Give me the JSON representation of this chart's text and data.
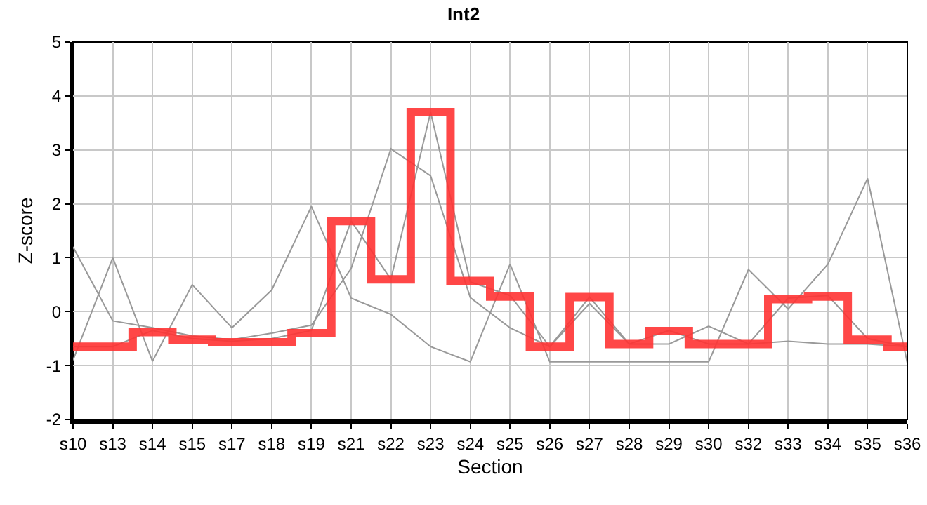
{
  "chart_data": {
    "type": "line",
    "title": "Int2",
    "xlabel": "Section",
    "ylabel": "Z-score",
    "categories": [
      "s10",
      "s13",
      "s14",
      "s15",
      "s17",
      "s18",
      "s19",
      "s21",
      "s22",
      "s23",
      "s24",
      "s25",
      "s26",
      "s27",
      "s28",
      "s29",
      "s30",
      "s32",
      "s33",
      "s34",
      "s35",
      "s36"
    ],
    "ylim": [
      -2,
      5
    ],
    "yticks": [
      -2,
      -1,
      0,
      1,
      2,
      3,
      4,
      5
    ],
    "grid": true,
    "marker": "none",
    "series": [
      {
        "color": "#999999",
        "values": [
          1.2,
          -0.17,
          -0.3,
          -0.45,
          -0.52,
          -0.4,
          -0.25,
          0.8,
          3.02,
          2.52,
          0.26,
          -0.3,
          -0.65,
          0.15,
          -0.6,
          -0.6,
          -0.27,
          -0.6,
          -0.55,
          -0.6,
          -0.6,
          -0.65
        ]
      },
      {
        "color": "#999999",
        "values": [
          -0.9,
          1.0,
          -0.92,
          0.5,
          -0.3,
          0.4,
          1.95,
          0.25,
          -0.05,
          -0.65,
          -0.93,
          0.88,
          -0.93,
          -0.93,
          -0.93,
          -0.93,
          -0.93,
          0.78,
          0.05,
          0.88,
          2.47,
          -0.95
        ]
      },
      {
        "color": "#999999",
        "values": [
          -0.65,
          -0.65,
          -0.35,
          -0.5,
          -0.55,
          -0.5,
          -0.35,
          1.68,
          0.6,
          3.7,
          0.55,
          0.3,
          -0.65,
          0.27,
          -0.6,
          -0.35,
          -0.6,
          -0.6,
          0.25,
          0.3,
          -0.5,
          -0.65
        ]
      },
      {
        "type": "step",
        "color": "#ff3333",
        "values": [
          -0.65,
          -0.65,
          -0.38,
          -0.52,
          -0.57,
          -0.57,
          -0.4,
          1.68,
          0.6,
          3.7,
          0.57,
          0.28,
          -0.65,
          0.27,
          -0.6,
          -0.36,
          -0.6,
          -0.6,
          0.23,
          0.28,
          -0.52,
          -0.65
        ]
      }
    ]
  }
}
